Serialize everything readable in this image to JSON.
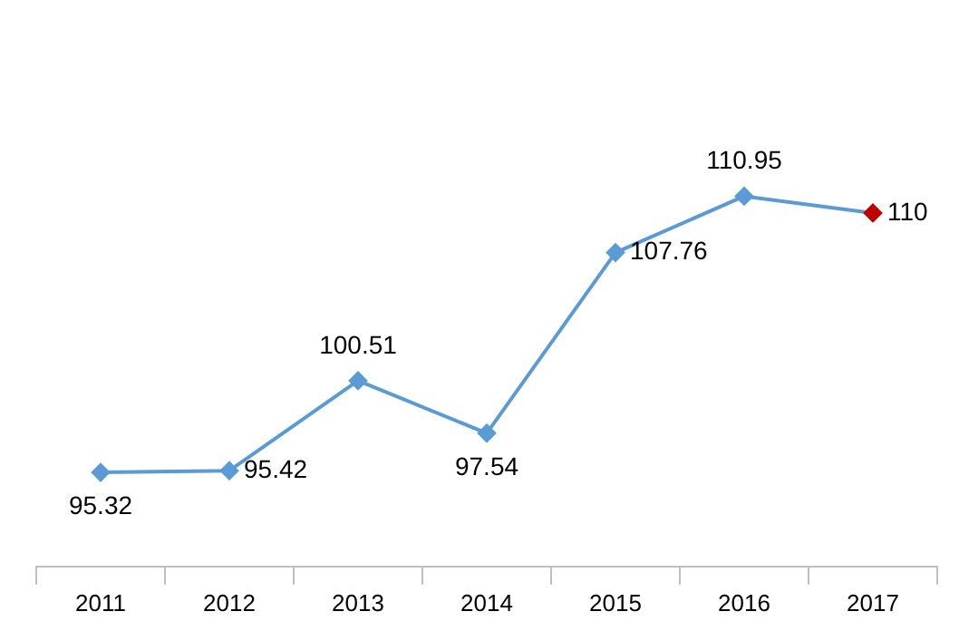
{
  "chart_data": {
    "type": "line",
    "categories": [
      "2011",
      "2012",
      "2013",
      "2014",
      "2015",
      "2016",
      "2017"
    ],
    "values": [
      95.32,
      95.42,
      100.51,
      97.54,
      107.76,
      110.95,
      110
    ],
    "color": "#5b9bd5",
    "colors": [
      "#5b9bd5",
      "#5b9bd5",
      "#5b9bd5",
      "#5b9bd5",
      "#5b9bd5",
      "#5b9bd5",
      "#c00000"
    ],
    "marker": "diamond",
    "data_labels": true,
    "grid": false,
    "legend": false
  }
}
